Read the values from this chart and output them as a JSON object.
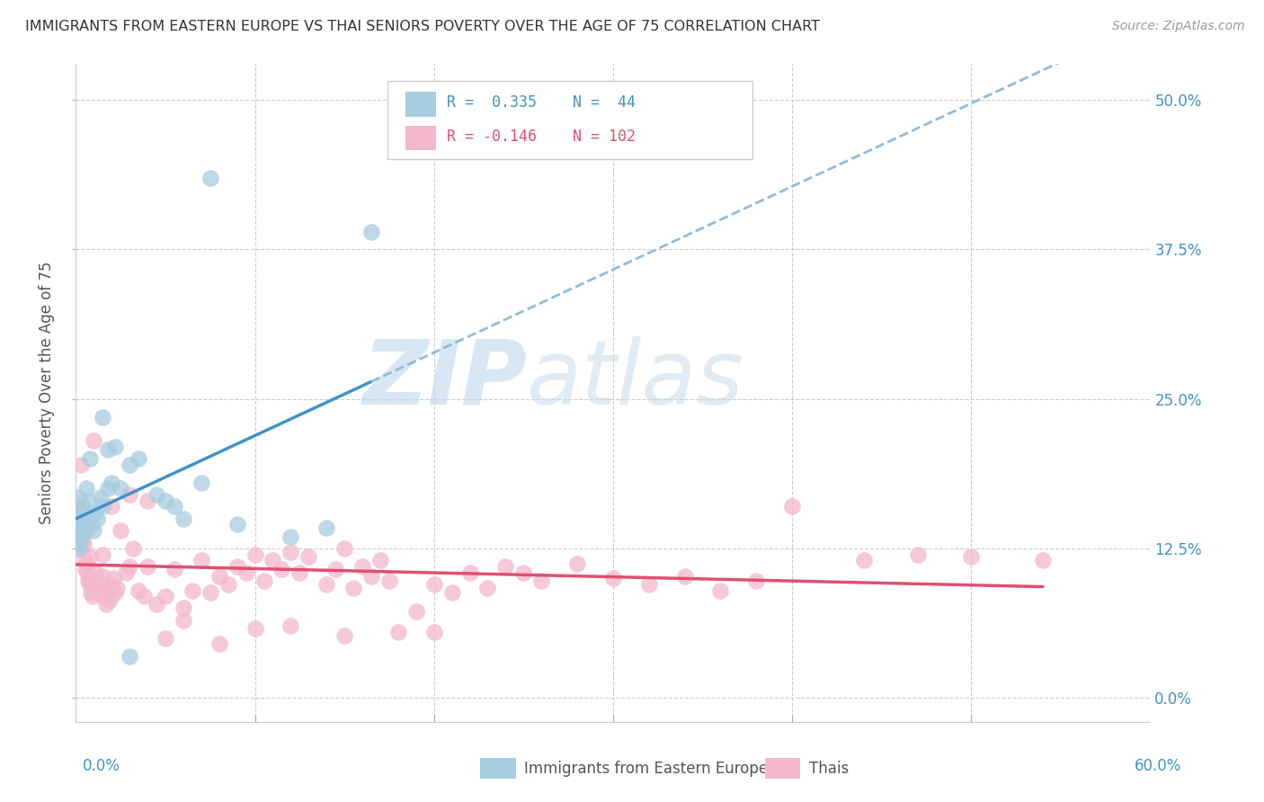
{
  "title": "IMMIGRANTS FROM EASTERN EUROPE VS THAI SENIORS POVERTY OVER THE AGE OF 75 CORRELATION CHART",
  "source": "Source: ZipAtlas.com",
  "ylabel": "Seniors Poverty Over the Age of 75",
  "ytick_vals": [
    0.0,
    12.5,
    25.0,
    37.5,
    50.0
  ],
  "xlim": [
    0.0,
    60.0
  ],
  "ylim": [
    -2.0,
    53.0
  ],
  "color_blue": "#a8cce0",
  "color_pink": "#f4b8cc",
  "color_blue_line": "#4292c6",
  "color_pink_line": "#e05070",
  "color_blue_dash": "#90bcd8",
  "background": "#ffffff",
  "grid_color": "#cccccc",
  "title_color": "#333333",
  "axis_color": "#4292c6",
  "blue_scatter": [
    [
      0.05,
      14.3
    ],
    [
      0.08,
      13.5
    ],
    [
      0.1,
      15.2
    ],
    [
      0.12,
      16.8
    ],
    [
      0.15,
      13.0
    ],
    [
      0.18,
      12.5
    ],
    [
      0.2,
      14.0
    ],
    [
      0.22,
      13.2
    ],
    [
      0.25,
      14.5
    ],
    [
      0.3,
      13.8
    ],
    [
      0.32,
      15.0
    ],
    [
      0.35,
      13.5
    ],
    [
      0.38,
      14.8
    ],
    [
      0.4,
      16.0
    ],
    [
      0.5,
      15.5
    ],
    [
      0.55,
      14.0
    ],
    [
      0.6,
      17.5
    ],
    [
      0.7,
      16.5
    ],
    [
      0.8,
      20.0
    ],
    [
      0.9,
      14.5
    ],
    [
      1.0,
      14.0
    ],
    [
      1.1,
      15.5
    ],
    [
      1.2,
      15.0
    ],
    [
      1.4,
      16.8
    ],
    [
      1.5,
      16.0
    ],
    [
      1.8,
      17.5
    ],
    [
      2.0,
      18.0
    ],
    [
      2.5,
      17.5
    ],
    [
      3.0,
      19.5
    ],
    [
      3.5,
      20.0
    ],
    [
      4.5,
      17.0
    ],
    [
      5.0,
      16.5
    ],
    [
      6.0,
      15.0
    ],
    [
      1.5,
      23.5
    ],
    [
      1.8,
      20.8
    ],
    [
      2.2,
      21.0
    ],
    [
      3.0,
      3.5
    ],
    [
      5.5,
      16.0
    ],
    [
      7.0,
      18.0
    ],
    [
      9.0,
      14.5
    ],
    [
      12.0,
      13.5
    ],
    [
      14.0,
      14.2
    ],
    [
      7.5,
      43.5
    ],
    [
      16.5,
      39.0
    ]
  ],
  "pink_scatter": [
    [
      0.02,
      14.5
    ],
    [
      0.04,
      15.8
    ],
    [
      0.06,
      13.2
    ],
    [
      0.08,
      16.0
    ],
    [
      0.1,
      14.0
    ],
    [
      0.12,
      13.5
    ],
    [
      0.15,
      15.2
    ],
    [
      0.18,
      14.8
    ],
    [
      0.2,
      13.0
    ],
    [
      0.22,
      12.5
    ],
    [
      0.25,
      14.2
    ],
    [
      0.28,
      13.8
    ],
    [
      0.3,
      15.5
    ],
    [
      0.35,
      14.0
    ],
    [
      0.4,
      13.2
    ],
    [
      0.45,
      12.8
    ],
    [
      0.5,
      11.5
    ],
    [
      0.55,
      10.8
    ],
    [
      0.6,
      11.2
    ],
    [
      0.65,
      10.5
    ],
    [
      0.7,
      9.8
    ],
    [
      0.75,
      10.2
    ],
    [
      0.8,
      9.5
    ],
    [
      0.85,
      8.8
    ],
    [
      0.9,
      9.2
    ],
    [
      0.95,
      8.5
    ],
    [
      1.0,
      9.8
    ],
    [
      1.1,
      10.5
    ],
    [
      1.2,
      9.2
    ],
    [
      1.3,
      8.8
    ],
    [
      1.4,
      9.5
    ],
    [
      1.5,
      10.2
    ],
    [
      1.6,
      8.5
    ],
    [
      1.7,
      7.8
    ],
    [
      1.8,
      9.0
    ],
    [
      1.9,
      8.2
    ],
    [
      2.0,
      9.5
    ],
    [
      2.1,
      10.0
    ],
    [
      2.2,
      8.8
    ],
    [
      2.3,
      9.2
    ],
    [
      2.5,
      14.0
    ],
    [
      2.8,
      10.5
    ],
    [
      3.0,
      11.0
    ],
    [
      3.2,
      12.5
    ],
    [
      3.5,
      9.0
    ],
    [
      3.8,
      8.5
    ],
    [
      4.0,
      11.0
    ],
    [
      4.5,
      7.8
    ],
    [
      5.0,
      8.5
    ],
    [
      5.5,
      10.8
    ],
    [
      6.0,
      7.5
    ],
    [
      6.5,
      9.0
    ],
    [
      7.0,
      11.5
    ],
    [
      7.5,
      8.8
    ],
    [
      8.0,
      10.2
    ],
    [
      8.5,
      9.5
    ],
    [
      9.0,
      11.0
    ],
    [
      9.5,
      10.5
    ],
    [
      10.0,
      12.0
    ],
    [
      10.5,
      9.8
    ],
    [
      11.0,
      11.5
    ],
    [
      11.5,
      10.8
    ],
    [
      12.0,
      12.2
    ],
    [
      12.5,
      10.5
    ],
    [
      13.0,
      11.8
    ],
    [
      14.0,
      9.5
    ],
    [
      14.5,
      10.8
    ],
    [
      15.0,
      12.5
    ],
    [
      15.5,
      9.2
    ],
    [
      16.0,
      11.0
    ],
    [
      16.5,
      10.2
    ],
    [
      17.0,
      11.5
    ],
    [
      17.5,
      9.8
    ],
    [
      18.0,
      5.5
    ],
    [
      19.0,
      7.2
    ],
    [
      20.0,
      9.5
    ],
    [
      21.0,
      8.8
    ],
    [
      22.0,
      10.5
    ],
    [
      23.0,
      9.2
    ],
    [
      24.0,
      11.0
    ],
    [
      25.0,
      10.5
    ],
    [
      26.0,
      9.8
    ],
    [
      28.0,
      11.2
    ],
    [
      30.0,
      10.0
    ],
    [
      32.0,
      9.5
    ],
    [
      34.0,
      10.2
    ],
    [
      36.0,
      9.0
    ],
    [
      38.0,
      9.8
    ],
    [
      40.0,
      16.0
    ],
    [
      44.0,
      11.5
    ],
    [
      47.0,
      12.0
    ],
    [
      50.0,
      11.8
    ],
    [
      54.0,
      11.5
    ],
    [
      0.3,
      19.5
    ],
    [
      1.0,
      21.5
    ],
    [
      2.0,
      16.0
    ],
    [
      3.0,
      17.0
    ],
    [
      4.0,
      16.5
    ],
    [
      1.5,
      12.0
    ],
    [
      0.8,
      11.8
    ],
    [
      5.0,
      5.0
    ],
    [
      6.0,
      6.5
    ],
    [
      8.0,
      4.5
    ],
    [
      10.0,
      5.8
    ],
    [
      12.0,
      6.0
    ],
    [
      15.0,
      5.2
    ],
    [
      20.0,
      5.5
    ]
  ],
  "watermark_zip": "ZIP",
  "watermark_atlas": "atlas",
  "legend_label1": "Immigrants from Eastern Europe",
  "legend_label2": "Thais"
}
